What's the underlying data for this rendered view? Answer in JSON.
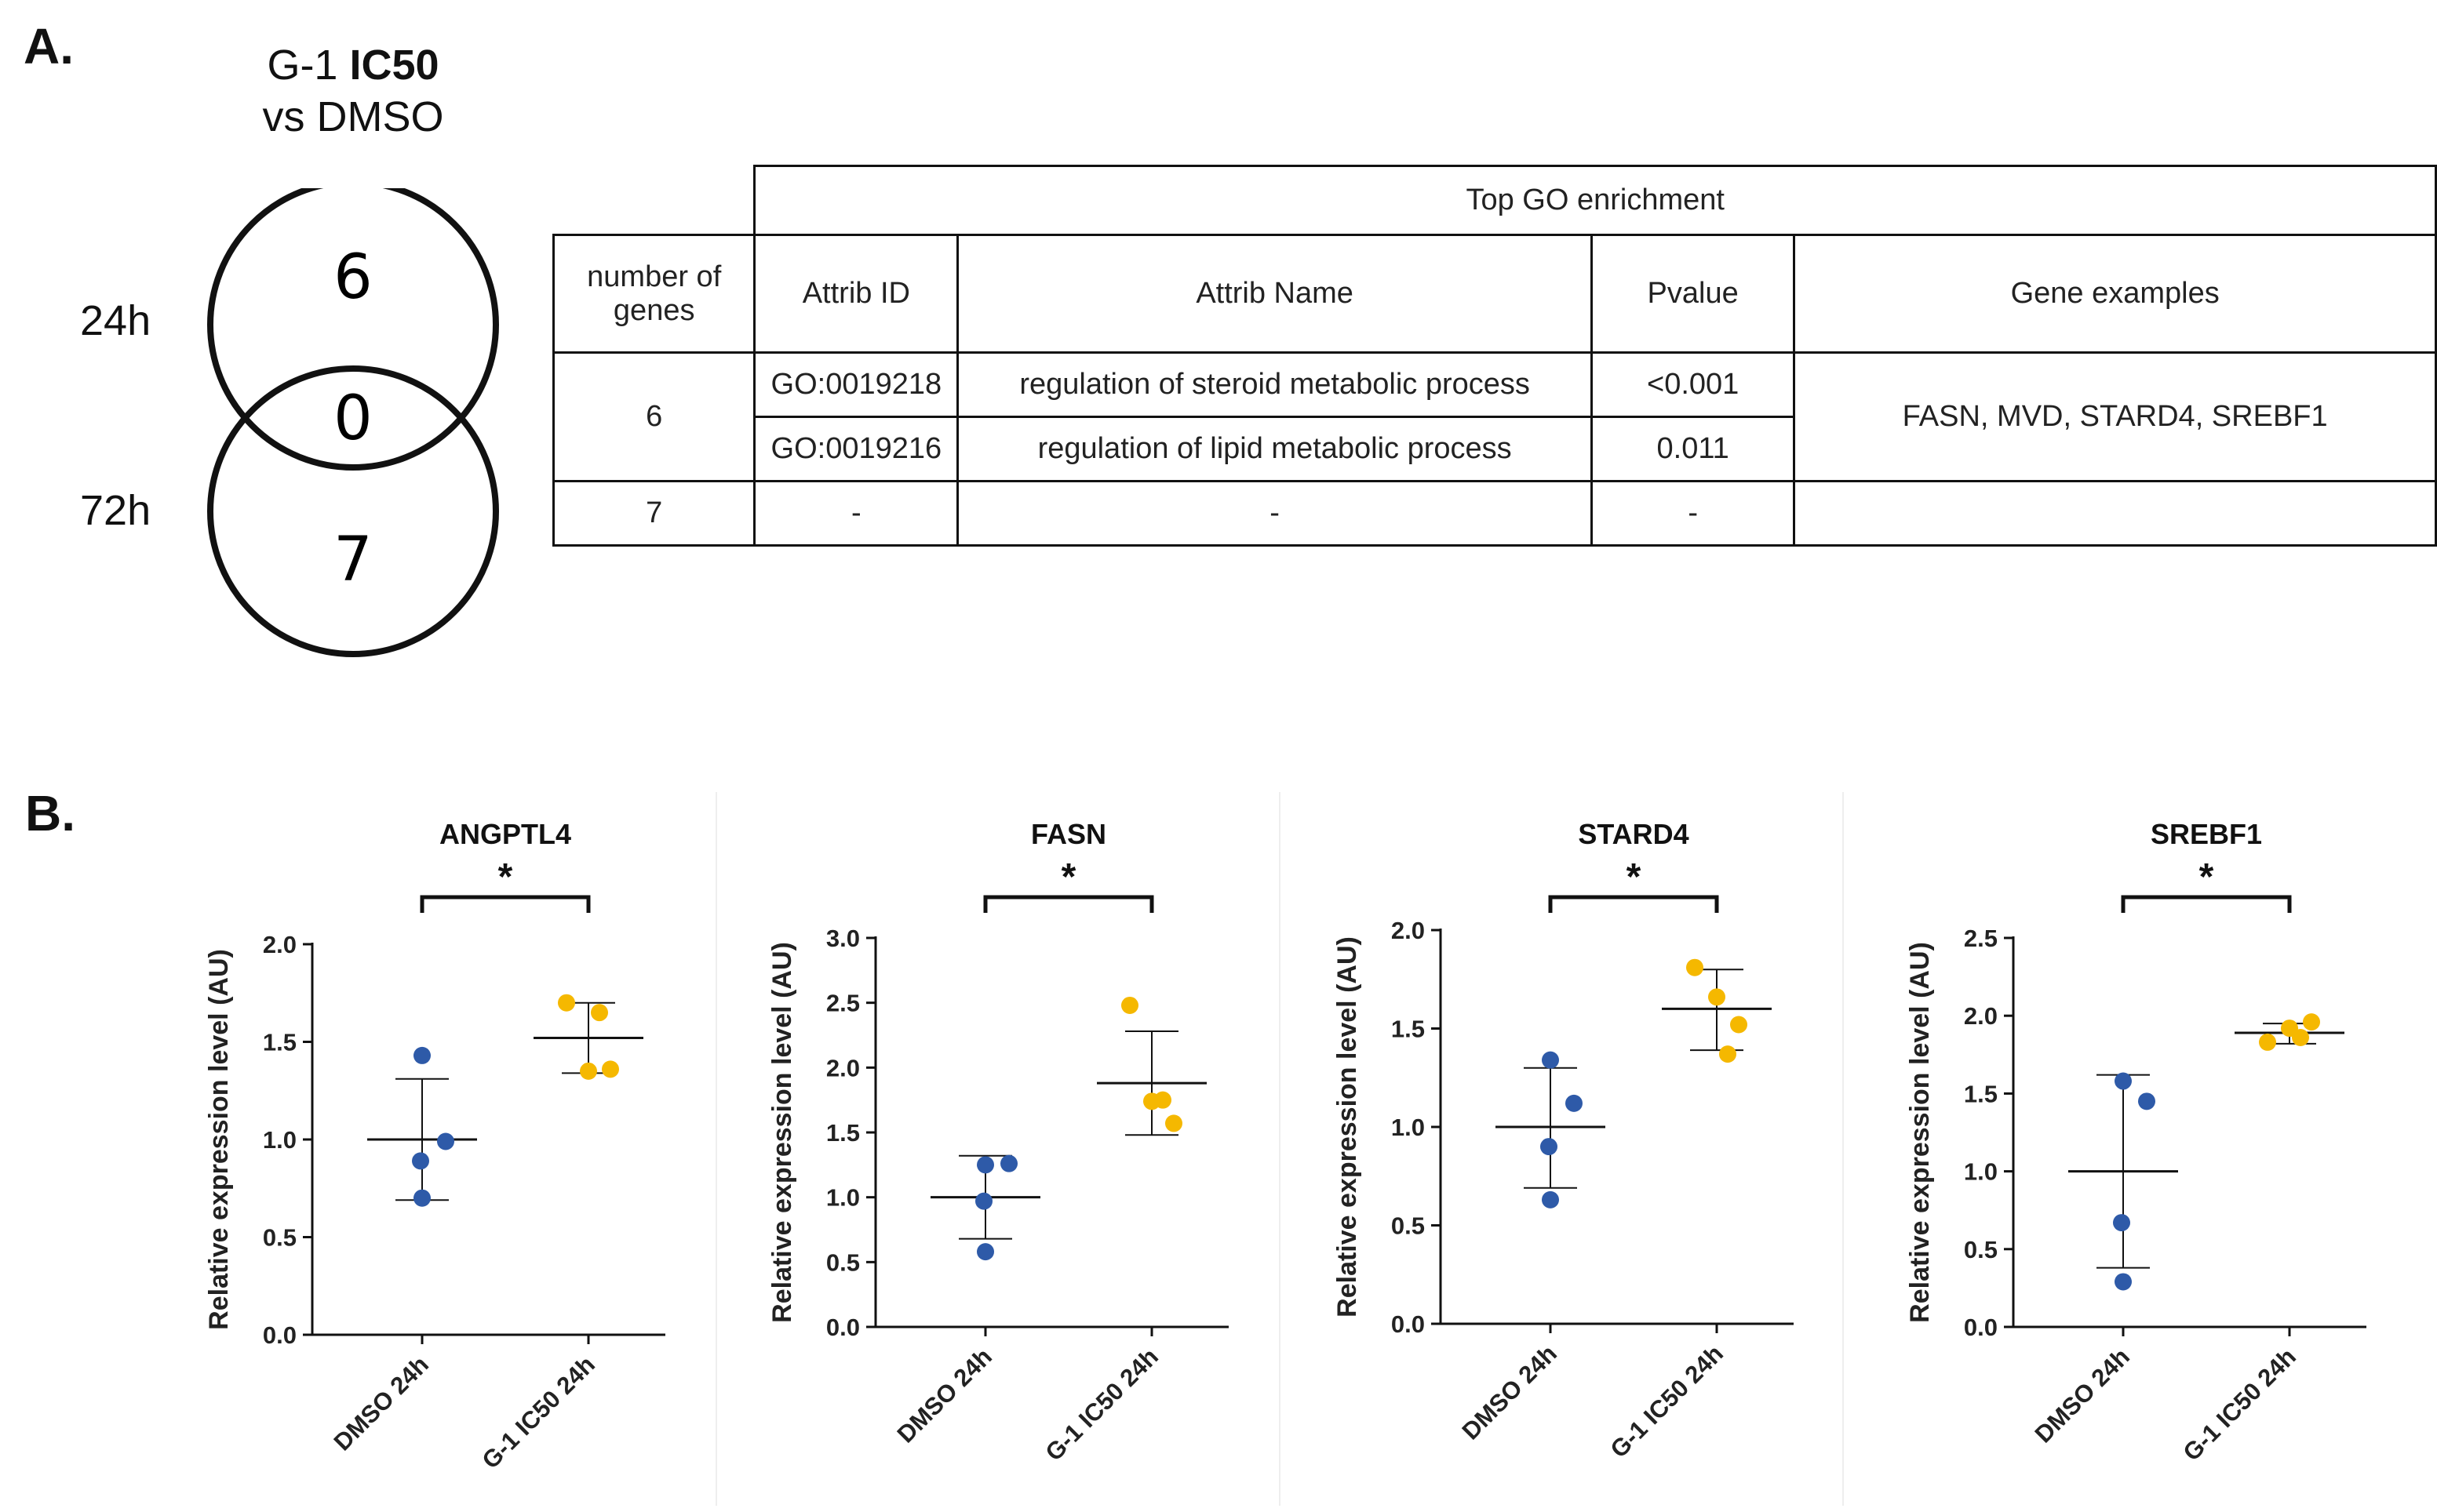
{
  "panel_a": {
    "label": "A.",
    "venn": {
      "title_plain": "G-1 ",
      "title_bold": "IC50",
      "title_line2": "vs DMSO",
      "label_top": "24h",
      "label_bottom": "72h",
      "count_top": "6",
      "count_overlap": "0",
      "count_bottom": "7"
    },
    "table": {
      "group_header": "Top GO enrichment",
      "headers": [
        "number of genes",
        "Attrib ID",
        "Attrib Name",
        "Pvalue",
        "Gene examples"
      ],
      "row1_count": "6",
      "row1a": {
        "id": "GO:0019218",
        "name": "regulation of steroid metabolic process",
        "pvalue": "<0.001"
      },
      "row1b": {
        "id": "GO:0019216",
        "name": "regulation of lipid metabolic process",
        "pvalue": "0.011"
      },
      "row1_genes": "FASN, MVD, STARD4, SREBF1",
      "row2": {
        "count": "7",
        "id": "-",
        "name": "-",
        "pvalue": "-",
        "genes": ""
      }
    }
  },
  "panel_b": {
    "label": "B."
  },
  "colors": {
    "dmso": "#2e5aa8",
    "g1": "#f5b800",
    "line": "#111111"
  },
  "chart_data": [
    {
      "type": "scatter",
      "title": "ANGPTL4",
      "ylabel": "Relative expression level (AU)",
      "categories": [
        "DMSO 24h",
        "G-1 IC50 24h"
      ],
      "ylim": [
        0,
        2.0
      ],
      "yticks": [
        0.0,
        0.5,
        1.0,
        1.5,
        2.0
      ],
      "tick_labels": [
        "0.0",
        "0.5",
        "1.0",
        "1.5",
        "2.0"
      ],
      "significance": "*",
      "series": [
        {
          "name": "DMSO 24h",
          "points": [
            1.43,
            0.99,
            0.89,
            0.7
          ],
          "mean": 1.0,
          "sd_low": 0.69,
          "sd_high": 1.31
        },
        {
          "name": "G-1 IC50 24h",
          "points": [
            1.7,
            1.35,
            1.36,
            1.65
          ],
          "mean": 1.52,
          "sd_low": 1.34,
          "sd_high": 1.7
        }
      ]
    },
    {
      "type": "scatter",
      "title": "FASN",
      "ylabel": "Relative expression level (AU)",
      "categories": [
        "DMSO 24h",
        "G-1 IC50 24h"
      ],
      "ylim": [
        0,
        3.0
      ],
      "yticks": [
        0.0,
        0.5,
        1.0,
        1.5,
        2.0,
        2.5,
        3.0
      ],
      "tick_labels": [
        "0.0",
        "0.5",
        "1.0",
        "1.5",
        "2.0",
        "2.5",
        "3.0"
      ],
      "significance": "*",
      "series": [
        {
          "name": "DMSO 24h",
          "points": [
            1.25,
            1.26,
            0.97,
            0.58
          ],
          "mean": 1.0,
          "sd_low": 0.68,
          "sd_high": 1.32
        },
        {
          "name": "G-1 IC50 24h",
          "points": [
            2.48,
            1.74,
            1.57,
            1.75
          ],
          "mean": 1.88,
          "sd_low": 1.48,
          "sd_high": 2.28
        }
      ]
    },
    {
      "type": "scatter",
      "title": "STARD4",
      "ylabel": "Relative expression level (AU)",
      "categories": [
        "DMSO 24h",
        "G-1 IC50 24h"
      ],
      "ylim": [
        0,
        2.0
      ],
      "yticks": [
        0.0,
        0.5,
        1.0,
        1.5,
        2.0
      ],
      "tick_labels": [
        "0.0",
        "0.5",
        "1.0",
        "1.5",
        "2.0"
      ],
      "significance": "*",
      "series": [
        {
          "name": "DMSO 24h",
          "points": [
            1.34,
            1.12,
            0.9,
            0.63
          ],
          "mean": 1.0,
          "sd_low": 0.69,
          "sd_high": 1.3
        },
        {
          "name": "G-1 IC50 24h",
          "points": [
            1.81,
            1.66,
            1.52,
            1.37
          ],
          "mean": 1.6,
          "sd_low": 1.39,
          "sd_high": 1.8
        }
      ]
    },
    {
      "type": "scatter",
      "title": "SREBF1",
      "ylabel": "Relative expression level (AU)",
      "categories": [
        "DMSO 24h",
        "G-1 IC50 24h"
      ],
      "ylim": [
        0,
        2.5
      ],
      "yticks": [
        0.0,
        0.5,
        1.0,
        1.5,
        2.0,
        2.5
      ],
      "tick_labels": [
        "0.0",
        "0.5",
        "1.0",
        "1.5",
        "2.0",
        "2.5"
      ],
      "significance": "*",
      "series": [
        {
          "name": "DMSO 24h",
          "points": [
            1.58,
            1.45,
            0.67,
            0.29
          ],
          "mean": 1.0,
          "sd_low": 0.38,
          "sd_high": 1.62
        },
        {
          "name": "G-1 IC50 24h",
          "points": [
            1.83,
            1.92,
            1.96,
            1.86
          ],
          "mean": 1.89,
          "sd_low": 1.82,
          "sd_high": 1.95
        }
      ]
    }
  ]
}
